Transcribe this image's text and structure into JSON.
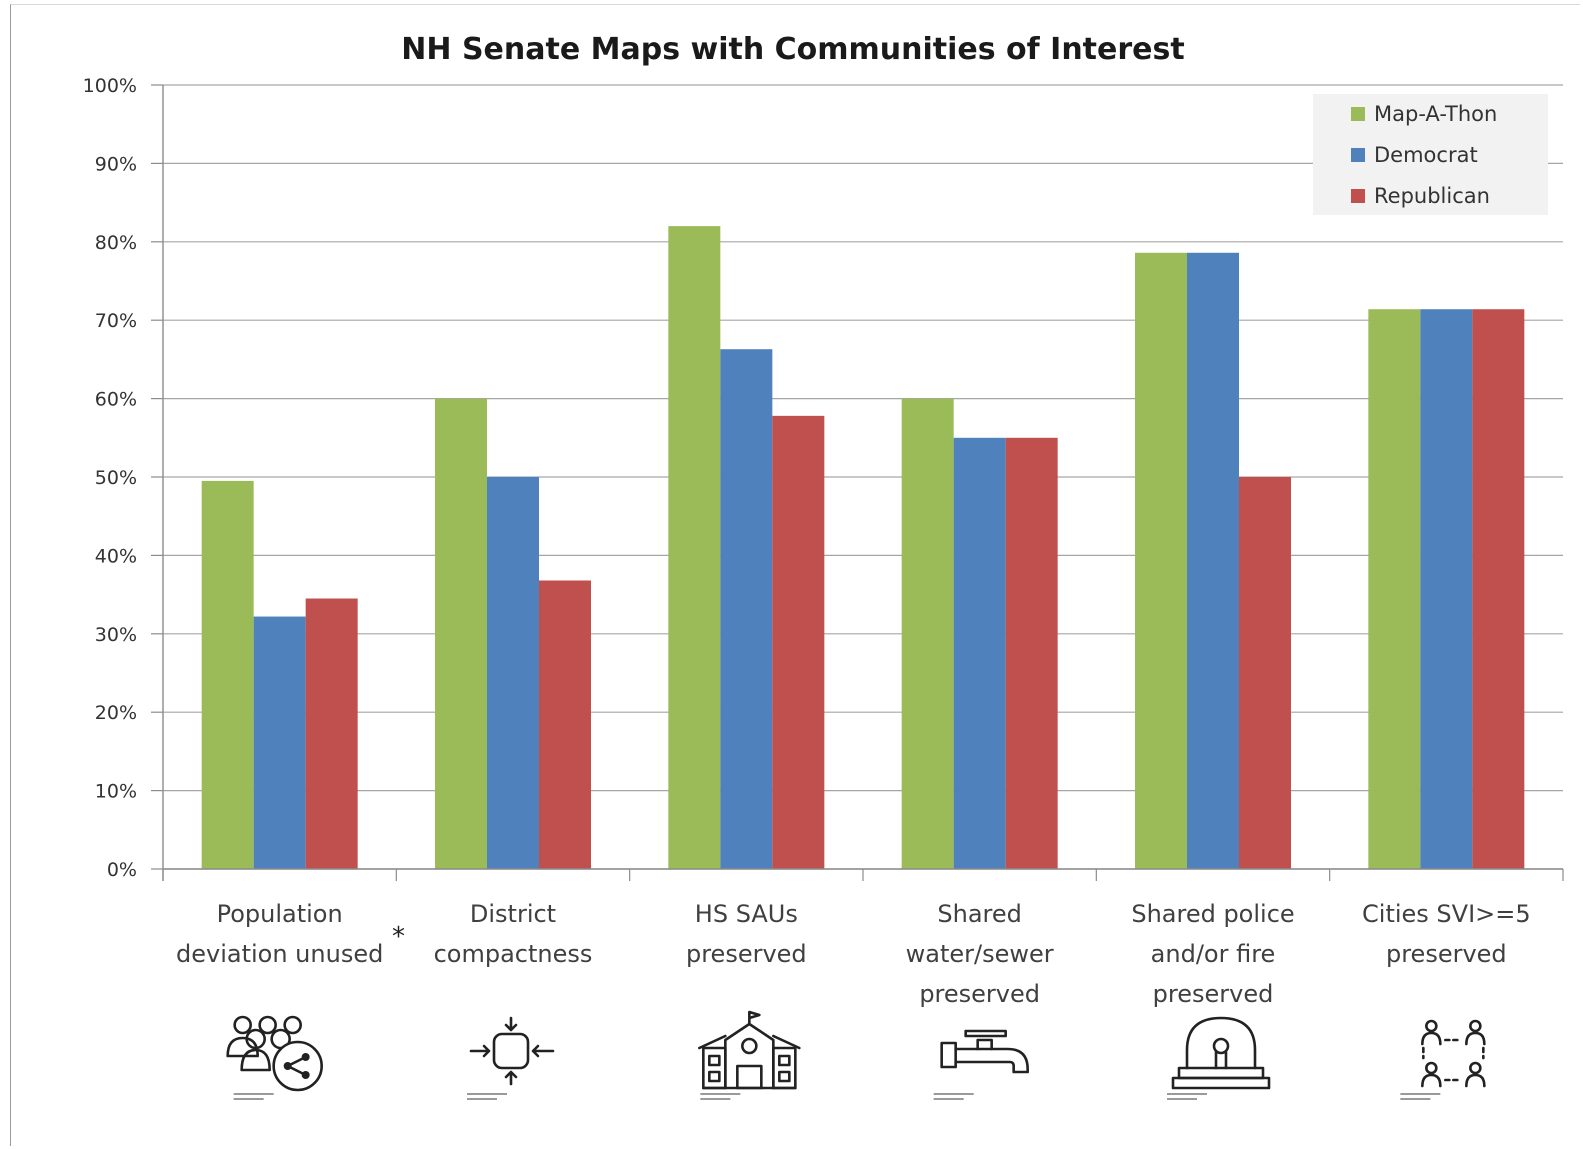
{
  "chart_data": {
    "type": "bar",
    "title": "NH Senate Maps with Communities of Interest",
    "categories": [
      [
        "Population",
        "deviation unused"
      ],
      [
        "District",
        "compactness"
      ],
      [
        "HS SAUs",
        "preserved"
      ],
      [
        "Shared",
        "water/sewer",
        "preserved"
      ],
      [
        "Shared police",
        "and/or fire",
        "preserved"
      ],
      [
        "Cities SVI>=5",
        "preserved"
      ]
    ],
    "category_footnote": "*",
    "category_icons": [
      "people-network-icon",
      "compress-arrows-icon",
      "school-building-icon",
      "water-faucet-icon",
      "police-siren-icon",
      "linked-people-icon"
    ],
    "series": [
      {
        "name": "Map-A-Thon",
        "color": "#9bbb59",
        "values": [
          0.495,
          0.6,
          0.82,
          0.6,
          0.786,
          0.714
        ]
      },
      {
        "name": "Democrat",
        "color": "#4f81bd",
        "values": [
          0.322,
          0.5,
          0.663,
          0.55,
          0.786,
          0.714
        ]
      },
      {
        "name": "Republican",
        "color": "#c0504d",
        "values": [
          0.345,
          0.368,
          0.578,
          0.55,
          0.5,
          0.714
        ]
      }
    ],
    "yticks": [
      "0%",
      "10%",
      "20%",
      "30%",
      "40%",
      "50%",
      "60%",
      "70%",
      "80%",
      "90%",
      "100%"
    ],
    "ylim": [
      0,
      1
    ],
    "xlabel": "",
    "ylabel": "",
    "grid": true,
    "legend_position": "top-right"
  }
}
